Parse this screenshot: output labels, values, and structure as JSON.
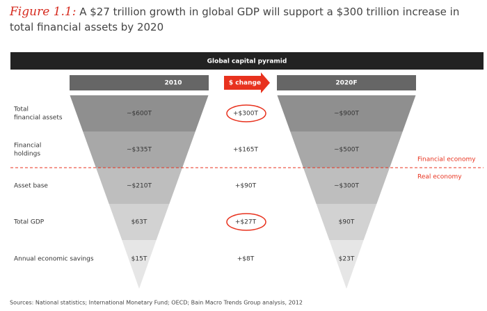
{
  "title": {
    "figure": "Figure 1.1:",
    "text": "A $27 trillion growth in global GDP will support a $300 trillion increase in total financial assets by 2020"
  },
  "banner": "Global capital pyramid",
  "headers": [
    "2010",
    "$ change",
    "2020F"
  ],
  "rows": [
    {
      "label": [
        "Total",
        "financial assets"
      ],
      "v2010": "~$600T",
      "change": "+$300T",
      "v2020": "~$900T",
      "circled": true
    },
    {
      "label": [
        "Financial",
        "holdings"
      ],
      "v2010": "~$335T",
      "change": "+$165T",
      "v2020": "~$500T",
      "circled": false
    },
    {
      "label": [
        "Asset base"
      ],
      "v2010": "~$210T",
      "change": "+$90T",
      "v2020": "~$300T",
      "circled": false
    },
    {
      "label": [
        "Total GDP"
      ],
      "v2010": "$63T",
      "change": "+$27T",
      "v2020": "$90T",
      "circled": true
    },
    {
      "label": [
        "Annual economic savings"
      ],
      "v2010": "$15T",
      "change": "+$8T",
      "v2020": "$23T",
      "circled": false
    }
  ],
  "divider": [
    "Financial economy",
    "Real economy"
  ],
  "source": "Sources: National statistics; International Monetary Fund; OECD; Bain Macro Trends Group analysis, 2012"
}
